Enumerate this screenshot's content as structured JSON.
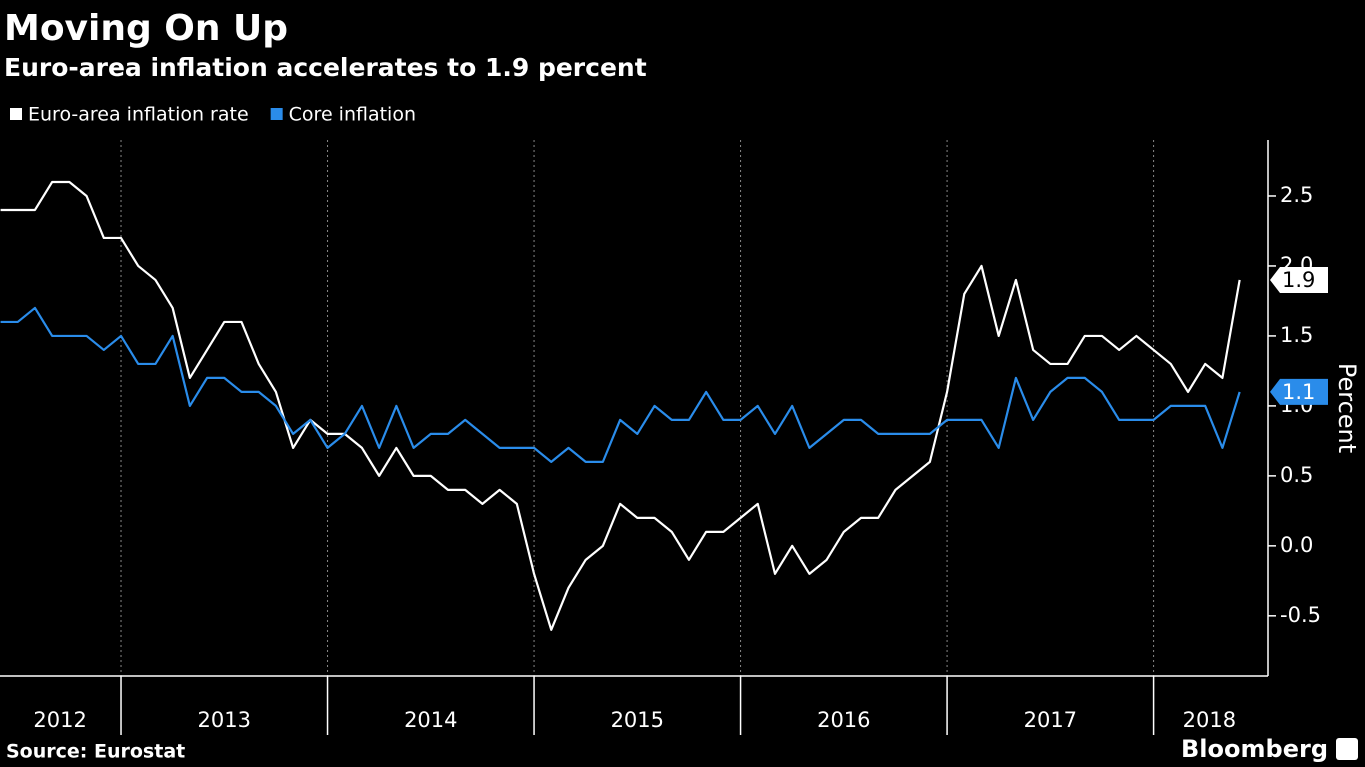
{
  "chart_data": {
    "type": "line",
    "title": "Moving On Up",
    "subtitle": "Euro-area inflation accelerates to 1.9 percent",
    "y_label": "Percent",
    "source": "Source: Eurostat",
    "logo": "Bloomberg",
    "x": [
      2012.4167,
      2012.5,
      2012.5833,
      2012.6667,
      2012.75,
      2012.8333,
      2012.9167,
      2013,
      2013.0833,
      2013.1667,
      2013.25,
      2013.3333,
      2013.4167,
      2013.5,
      2013.5833,
      2013.6667,
      2013.75,
      2013.8333,
      2013.9167,
      2014,
      2014.0833,
      2014.1667,
      2014.25,
      2014.3333,
      2014.4167,
      2014.5,
      2014.5833,
      2014.6667,
      2014.75,
      2014.8333,
      2014.9167,
      2015,
      2015.0833,
      2015.1667,
      2015.25,
      2015.3333,
      2015.4167,
      2015.5,
      2015.5833,
      2015.6667,
      2015.75,
      2015.8333,
      2015.9167,
      2016,
      2016.0833,
      2016.1667,
      2016.25,
      2016.3333,
      2016.4167,
      2016.5,
      2016.5833,
      2016.6667,
      2016.75,
      2016.8333,
      2016.9167,
      2017,
      2017.0833,
      2017.1667,
      2017.25,
      2017.3333,
      2017.4167,
      2017.5,
      2017.5833,
      2017.6667,
      2017.75,
      2017.8333,
      2017.9167,
      2018,
      2018.0833,
      2018.1667,
      2018.25,
      2018.3333,
      2018.4167
    ],
    "series": [
      {
        "name": "Euro-area inflation rate",
        "color": "#ffffff",
        "values": [
          2.4,
          2.4,
          2.4,
          2.6,
          2.6,
          2.5,
          2.2,
          2.2,
          2.0,
          1.9,
          1.7,
          1.2,
          1.4,
          1.6,
          1.6,
          1.3,
          1.1,
          0.7,
          0.9,
          0.8,
          0.8,
          0.7,
          0.5,
          0.7,
          0.5,
          0.5,
          0.4,
          0.4,
          0.3,
          0.4,
          0.3,
          -0.2,
          -0.6,
          -0.3,
          -0.1,
          0.0,
          0.3,
          0.2,
          0.2,
          0.1,
          -0.1,
          0.1,
          0.1,
          0.2,
          0.3,
          -0.2,
          0.0,
          -0.2,
          -0.1,
          0.1,
          0.2,
          0.2,
          0.4,
          0.5,
          0.6,
          1.1,
          1.8,
          2.0,
          1.5,
          1.9,
          1.4,
          1.3,
          1.3,
          1.5,
          1.5,
          1.4,
          1.5,
          1.4,
          1.3,
          1.1,
          1.3,
          1.2,
          1.9
        ]
      },
      {
        "name": "Core inflation",
        "color": "#2a8cea",
        "values": [
          1.6,
          1.6,
          1.7,
          1.5,
          1.5,
          1.5,
          1.4,
          1.5,
          1.3,
          1.3,
          1.5,
          1.0,
          1.2,
          1.2,
          1.1,
          1.1,
          1.0,
          0.8,
          0.9,
          0.7,
          0.8,
          1.0,
          0.7,
          1.0,
          0.7,
          0.8,
          0.8,
          0.9,
          0.8,
          0.7,
          0.7,
          0.7,
          0.6,
          0.7,
          0.6,
          0.6,
          0.9,
          0.8,
          1.0,
          0.9,
          0.9,
          1.1,
          0.9,
          0.9,
          1.0,
          0.8,
          1.0,
          0.7,
          0.8,
          0.9,
          0.9,
          0.8,
          0.8,
          0.8,
          0.8,
          0.9,
          0.9,
          0.9,
          0.7,
          1.2,
          0.9,
          1.1,
          1.2,
          1.2,
          1.1,
          0.9,
          0.9,
          0.9,
          1.0,
          1.0,
          1.0,
          0.7,
          1.1
        ]
      }
    ],
    "xlim": [
      2012.414,
      2018.554
    ],
    "xgrid": [
      2013,
      2014,
      2015,
      2016,
      2017,
      2018
    ],
    "xticks": [
      {
        "value": 2012.705,
        "label": "2012"
      },
      {
        "value": 2013.5,
        "label": "2013"
      },
      {
        "value": 2014.5,
        "label": "2014"
      },
      {
        "value": 2015.5,
        "label": "2015"
      },
      {
        "value": 2016.5,
        "label": "2016"
      },
      {
        "value": 2017.5,
        "label": "2017"
      },
      {
        "value": 2018.27,
        "label": "2018"
      }
    ],
    "ylim": [
      -0.93,
      2.9
    ],
    "yticks": [
      -0.5,
      {
        "value": 0,
        "label": "0.0"
      },
      0.5,
      {
        "value": 1,
        "label": "1.0"
      },
      1.5,
      {
        "value": 2,
        "label": "2.0"
      },
      2.5
    ]
  }
}
